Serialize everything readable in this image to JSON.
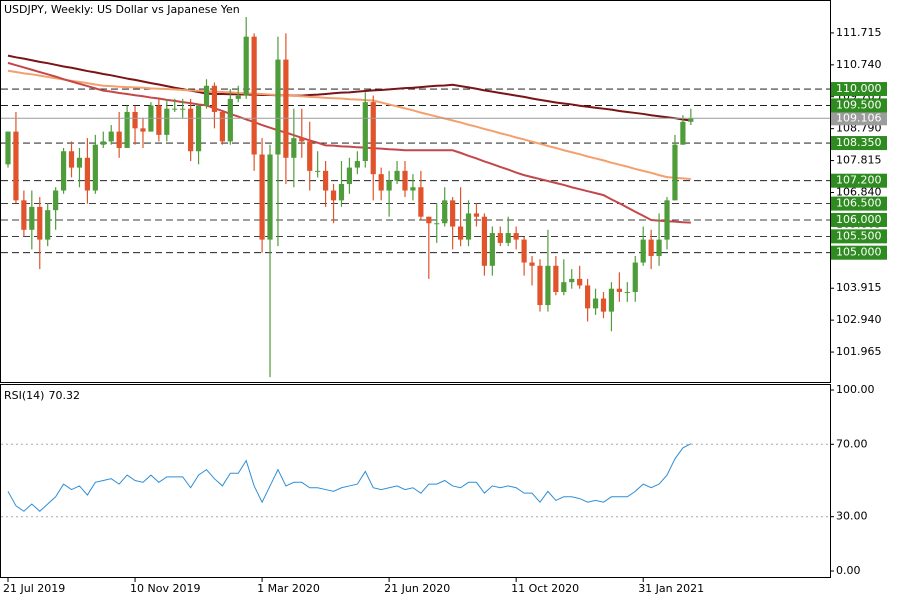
{
  "chart_data": [
    {
      "type": "candlestick",
      "title": "USDJPY, Weekly:  US Dollar vs Japanese Yen",
      "categories": [
        "21 Jul 2019",
        null,
        null,
        null,
        null,
        null,
        null,
        null,
        null,
        null,
        null,
        null,
        null,
        null,
        null,
        null,
        "10 Nov 2019",
        null,
        null,
        null,
        null,
        null,
        null,
        null,
        null,
        null,
        null,
        null,
        null,
        null,
        null,
        null,
        "1 Mar 2020",
        null,
        null,
        null,
        null,
        null,
        null,
        null,
        null,
        null,
        null,
        null,
        null,
        null,
        null,
        null,
        "21 Jun 2020",
        null,
        null,
        null,
        null,
        null,
        null,
        null,
        null,
        null,
        null,
        null,
        null,
        null,
        null,
        null,
        "11 Oct 2020",
        null,
        null,
        null,
        null,
        null,
        null,
        null,
        null,
        null,
        null,
        null,
        null,
        null,
        null,
        null,
        "31 Jan 2021",
        null,
        null,
        null,
        null,
        null,
        null
      ],
      "open": [
        107.7,
        108.7,
        106.6,
        105.7,
        106.4,
        105.4,
        106.3,
        106.9,
        108.1,
        107.6,
        107.9,
        106.9,
        108.3,
        108.4,
        108.7,
        108.2,
        109.3,
        108.8,
        108.7,
        109.5,
        108.6,
        109.4,
        109.4,
        109.4,
        108.1,
        109.5,
        110.1,
        109.3,
        108.4,
        109.7,
        109.8,
        111.6,
        108.0,
        105.4,
        108.0,
        110.9,
        107.9,
        108.5,
        108.4,
        107.5,
        107.5,
        106.9,
        106.6,
        107.1,
        107.6,
        107.8,
        109.6,
        107.4,
        106.9,
        107.2,
        107.5,
        106.9,
        107.0,
        106.1,
        105.9,
        105.9,
        106.6,
        105.8,
        105.4,
        106.2,
        106.1,
        104.6,
        105.6,
        105.3,
        105.6,
        105.4,
        104.7,
        104.6,
        103.4,
        104.6,
        103.8,
        104.1,
        104.2,
        104.0,
        103.3,
        103.6,
        103.2,
        103.9,
        103.8,
        103.8,
        104.7,
        105.4,
        104.9,
        105.4,
        106.6,
        108.3,
        109.0
      ],
      "high": [
        108.7,
        109.3,
        106.9,
        106.9,
        106.7,
        106.5,
        107.0,
        108.2,
        108.4,
        108.2,
        108.5,
        108.6,
        108.7,
        108.9,
        109.3,
        109.5,
        109.5,
        109.1,
        109.6,
        109.7,
        109.7,
        109.7,
        109.7,
        109.7,
        109.5,
        110.3,
        110.2,
        109.3,
        110.0,
        110.1,
        112.2,
        111.7,
        108.5,
        108.3,
        111.6,
        111.7,
        109.4,
        109.4,
        109.0,
        108.1,
        107.8,
        107.1,
        107.8,
        107.9,
        108.1,
        109.9,
        109.8,
        107.6,
        107.5,
        107.8,
        107.8,
        107.4,
        107.5,
        106.1,
        106.5,
        107.0,
        106.7,
        107.0,
        106.6,
        106.5,
        106.2,
        105.8,
        105.8,
        106.1,
        105.8,
        105.5,
        104.9,
        104.8,
        105.7,
        104.9,
        104.8,
        104.5,
        104.6,
        104.2,
        103.9,
        103.8,
        104.1,
        104.4,
        104.1,
        104.9,
        105.8,
        105.7,
        106.2,
        106.7,
        108.6,
        109.2,
        109.4
      ],
      "low": [
        107.6,
        106.5,
        105.5,
        105.1,
        104.5,
        105.2,
        105.7,
        106.8,
        107.3,
        107.0,
        106.5,
        106.8,
        108.2,
        108.3,
        107.9,
        108.2,
        108.3,
        108.2,
        108.7,
        108.4,
        108.4,
        109.3,
        109.1,
        107.8,
        107.7,
        109.4,
        108.8,
        108.3,
        108.3,
        109.6,
        109.7,
        107.5,
        105.0,
        101.2,
        105.2,
        107.1,
        107.0,
        107.9,
        106.9,
        107.3,
        106.4,
        105.9,
        106.4,
        106.8,
        107.4,
        107.6,
        106.6,
        106.6,
        106.1,
        107.1,
        106.7,
        106.6,
        106.0,
        104.2,
        105.3,
        105.8,
        105.1,
        105.2,
        105.2,
        105.8,
        104.3,
        104.3,
        105.2,
        105.2,
        105.1,
        104.3,
        104.0,
        103.2,
        103.2,
        103.7,
        103.7,
        103.9,
        103.9,
        102.9,
        103.1,
        103.0,
        102.6,
        103.5,
        103.5,
        103.5,
        104.6,
        104.5,
        104.6,
        105.1,
        106.6,
        108.3,
        108.9
      ],
      "close": [
        108.7,
        106.6,
        105.7,
        106.4,
        105.4,
        106.3,
        106.9,
        108.1,
        107.6,
        107.9,
        106.9,
        108.3,
        108.4,
        108.7,
        108.2,
        109.3,
        108.8,
        108.7,
        109.5,
        108.6,
        109.4,
        109.4,
        109.4,
        108.1,
        109.5,
        110.1,
        109.3,
        108.4,
        109.7,
        109.8,
        111.6,
        108.0,
        105.4,
        108.0,
        110.9,
        107.9,
        108.5,
        108.4,
        107.5,
        107.5,
        106.9,
        106.6,
        107.1,
        107.6,
        107.8,
        109.6,
        107.4,
        106.9,
        107.2,
        107.5,
        106.9,
        107.0,
        106.1,
        105.9,
        105.9,
        106.6,
        105.8,
        105.4,
        106.2,
        106.1,
        104.6,
        105.6,
        105.3,
        105.6,
        105.4,
        104.7,
        104.6,
        103.4,
        104.6,
        103.8,
        104.1,
        104.2,
        104.0,
        103.3,
        103.6,
        103.2,
        103.9,
        103.8,
        103.8,
        104.7,
        105.4,
        104.9,
        105.4,
        106.6,
        108.3,
        109.0,
        109.1
      ],
      "up_color": "#4f9d3a",
      "down_color": "#e0532b",
      "overlays": [
        {
          "color": "#7b1416",
          "values": [
            111.02,
            110.97,
            110.93,
            110.88,
            110.83,
            110.79,
            110.74,
            110.69,
            110.65,
            110.6,
            110.55,
            110.51,
            110.46,
            110.42,
            110.37,
            110.32,
            110.28,
            110.23,
            110.18,
            110.14,
            110.09,
            110.04,
            110.0,
            109.95,
            109.91,
            109.86,
            109.85,
            109.85,
            109.84,
            109.84,
            109.83,
            109.83,
            109.82,
            109.82,
            109.81,
            109.81,
            109.8,
            109.8,
            109.82,
            109.83,
            109.85,
            109.87,
            109.89,
            109.9,
            109.92,
            109.94,
            109.96,
            109.97,
            109.99,
            110.01,
            110.03,
            110.04,
            110.06,
            110.08,
            110.1,
            110.11,
            110.13,
            110.09,
            110.05,
            110.01,
            109.96,
            109.92,
            109.88,
            109.84,
            109.8,
            109.76,
            109.71,
            109.67,
            109.63,
            109.59,
            109.56,
            109.53,
            109.49,
            109.46,
            109.43,
            109.4,
            109.37,
            109.33,
            109.3,
            109.27,
            109.24,
            109.2,
            109.17,
            109.14,
            109.11,
            109.07,
            109.04
          ]
        },
        {
          "color": "#f4a06e",
          "values": [
            110.56,
            110.52,
            110.48,
            110.45,
            110.41,
            110.37,
            110.33,
            110.29,
            110.25,
            110.22,
            110.18,
            110.14,
            110.1,
            110.09,
            110.07,
            110.06,
            110.05,
            110.04,
            110.02,
            110.01,
            110.0,
            109.99,
            109.97,
            109.96,
            109.95,
            109.93,
            109.92,
            109.91,
            109.9,
            109.88,
            109.87,
            109.86,
            109.85,
            109.83,
            109.82,
            109.8,
            109.79,
            109.78,
            109.76,
            109.75,
            109.73,
            109.72,
            109.71,
            109.69,
            109.68,
            109.66,
            109.65,
            109.59,
            109.53,
            109.47,
            109.41,
            109.35,
            109.28,
            109.22,
            109.16,
            109.1,
            109.04,
            108.98,
            108.91,
            108.85,
            108.78,
            108.72,
            108.65,
            108.59,
            108.52,
            108.46,
            108.39,
            108.33,
            108.26,
            108.2,
            108.13,
            108.07,
            108.01,
            107.94,
            107.88,
            107.82,
            107.75,
            107.69,
            107.63,
            107.56,
            107.5,
            107.44,
            107.37,
            107.31,
            107.29,
            107.27,
            107.25
          ]
        },
        {
          "color": "#c4474a",
          "values": [
            110.8,
            110.73,
            110.66,
            110.59,
            110.52,
            110.45,
            110.38,
            110.3,
            110.23,
            110.16,
            110.09,
            110.02,
            109.95,
            109.92,
            109.88,
            109.85,
            109.81,
            109.78,
            109.74,
            109.71,
            109.67,
            109.64,
            109.6,
            109.57,
            109.53,
            109.5,
            109.41,
            109.33,
            109.24,
            109.16,
            109.07,
            108.99,
            108.9,
            108.82,
            108.74,
            108.67,
            108.59,
            108.51,
            108.43,
            108.36,
            108.28,
            108.27,
            108.25,
            108.24,
            108.22,
            108.21,
            108.19,
            108.18,
            108.16,
            108.15,
            108.13,
            108.13,
            108.13,
            108.13,
            108.13,
            108.13,
            108.13,
            108.05,
            107.96,
            107.88,
            107.79,
            107.71,
            107.62,
            107.54,
            107.45,
            107.37,
            107.31,
            107.25,
            107.19,
            107.13,
            107.07,
            107.0,
            106.94,
            106.88,
            106.82,
            106.76,
            106.63,
            106.51,
            106.38,
            106.25,
            106.13,
            106.0,
            105.98,
            105.96,
            105.95,
            105.93,
            105.92
          ]
        }
      ],
      "ylim": [
        101.05,
        112.69
      ],
      "yticks": [
        {
          "value": 111.715,
          "label": "111.715"
        },
        {
          "value": 110.74,
          "label": "110.740"
        },
        {
          "value": 109.765,
          "label": "109.765"
        },
        {
          "value": 108.79,
          "label": "108.790"
        },
        {
          "value": 107.815,
          "label": "107.815"
        },
        {
          "value": 106.84,
          "label": "106.840"
        },
        {
          "value": 105.865,
          "label": "105.865"
        },
        {
          "value": 104.89,
          "label": "104.890"
        },
        {
          "value": 103.915,
          "label": "103.915"
        },
        {
          "value": 102.94,
          "label": "102.940"
        },
        {
          "value": 101.965,
          "label": "101.965"
        }
      ],
      "levels": [
        {
          "value": 110,
          "label": "110.000"
        },
        {
          "value": 109.5,
          "label": "109.500"
        },
        {
          "value": 108.35,
          "label": "108.350"
        },
        {
          "value": 107.2,
          "label": "107.200"
        },
        {
          "value": 106.5,
          "label": "106.500"
        },
        {
          "value": 106,
          "label": "106.000"
        },
        {
          "value": 105.5,
          "label": "105.500"
        },
        {
          "value": 105,
          "label": "105.000"
        }
      ],
      "level_color": "#2e8b1f",
      "current_price": 109.106,
      "current_color": "#9c9c9c"
    },
    {
      "type": "line",
      "title": "RSI(14)",
      "color": "#2f8fd8",
      "values": [
        44,
        36,
        33,
        37,
        33,
        37,
        41,
        48,
        45,
        47,
        42,
        49,
        50,
        51,
        48,
        53,
        50,
        49,
        53,
        49,
        52,
        52,
        52,
        46,
        53,
        56,
        51,
        47,
        54,
        54,
        61,
        47,
        38,
        47,
        56,
        47,
        49,
        49,
        46,
        46,
        45,
        44,
        46,
        47,
        48,
        55,
        46,
        45,
        46,
        47,
        45,
        46,
        43,
        48,
        48,
        50,
        47,
        46,
        49,
        49,
        43,
        47,
        46,
        47,
        46,
        43,
        43,
        38,
        44,
        39,
        41,
        41,
        40,
        38,
        39,
        38,
        41,
        41,
        41,
        44,
        48,
        46,
        48,
        53,
        62,
        68,
        70.32
      ],
      "ylim": [
        0,
        100
      ],
      "yticks": [
        {
          "value": 100,
          "label": "100.00"
        },
        {
          "value": 70,
          "label": "70.00"
        },
        {
          "value": 30,
          "label": "30.00"
        },
        {
          "value": 0,
          "label": "0.00"
        }
      ]
    }
  ]
}
